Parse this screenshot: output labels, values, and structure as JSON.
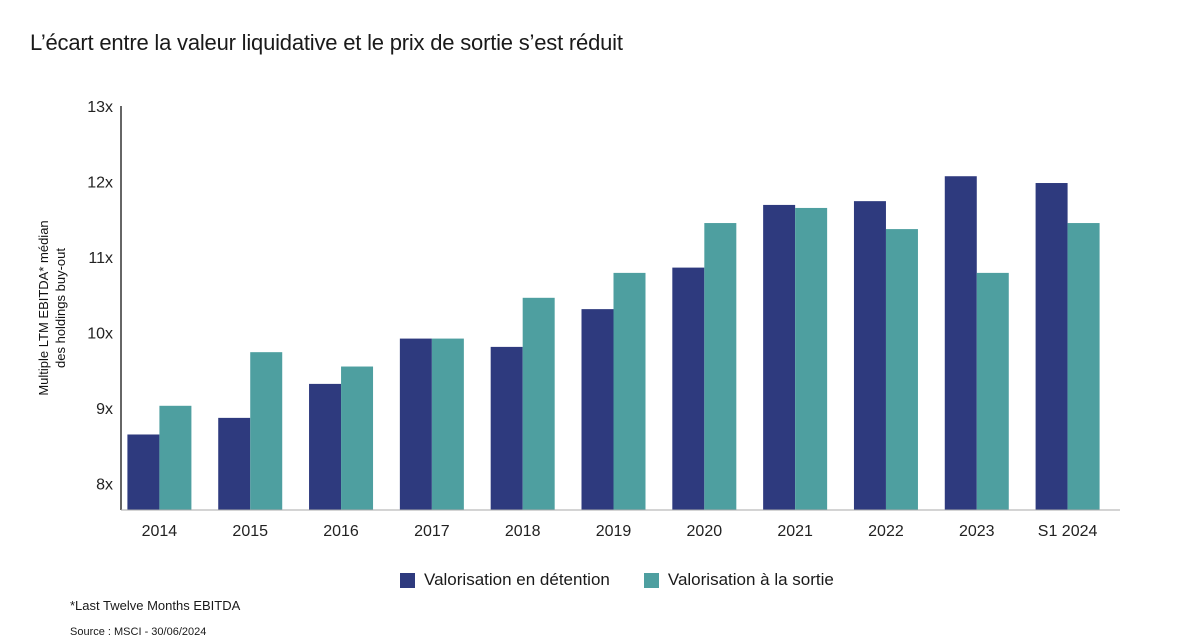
{
  "title": "L’écart entre la valeur liquidative et le prix de sortie s’est réduit",
  "footnote": "*Last Twelve Months EBITDA",
  "source": "Source : MSCI - 30/06/2024",
  "chart_data": {
    "type": "bar",
    "categories": [
      "2014",
      "2015",
      "2016",
      "2017",
      "2018",
      "2019",
      "2020",
      "2021",
      "2022",
      "2023",
      "S1 2024"
    ],
    "series": [
      {
        "name": "Valorisation en détention",
        "color": "#2e3a7e",
        "values": [
          8.65,
          8.87,
          9.32,
          9.92,
          9.81,
          10.31,
          10.86,
          11.69,
          11.74,
          12.07,
          11.98
        ]
      },
      {
        "name": "Valorisation à la sortie",
        "color": "#4e9fa0",
        "values": [
          9.03,
          9.74,
          9.55,
          9.92,
          10.46,
          10.79,
          11.45,
          11.65,
          11.37,
          10.79,
          11.45
        ]
      }
    ],
    "ylabel_line1": "Multiple LTM EBITDA* médian",
    "ylabel_line2": "des holdings buy-out",
    "xlabel": "",
    "ylim": [
      7.65,
      13
    ],
    "yticks": [
      8,
      9,
      10,
      11,
      12,
      13
    ],
    "ytick_labels": [
      "8x",
      "9x",
      "10x",
      "11x",
      "12x",
      "13x"
    ],
    "grid": false,
    "legend_position": "bottom"
  }
}
